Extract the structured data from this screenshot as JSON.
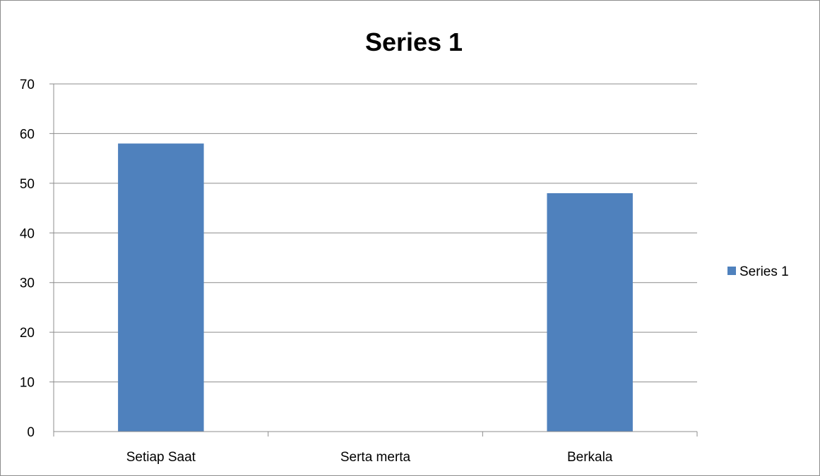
{
  "chart_data": {
    "type": "bar",
    "title": "Series 1",
    "categories": [
      "Setiap Saat",
      "Serta merta",
      "Berkala"
    ],
    "series": [
      {
        "name": "Series 1",
        "values": [
          58,
          0,
          48
        ],
        "color": "#4F81BD"
      }
    ],
    "ylim": [
      0,
      70
    ],
    "yticks": [
      "0",
      "10",
      "20",
      "30",
      "40",
      "50",
      "60",
      "70"
    ],
    "grid": true,
    "legend_position": "right"
  }
}
